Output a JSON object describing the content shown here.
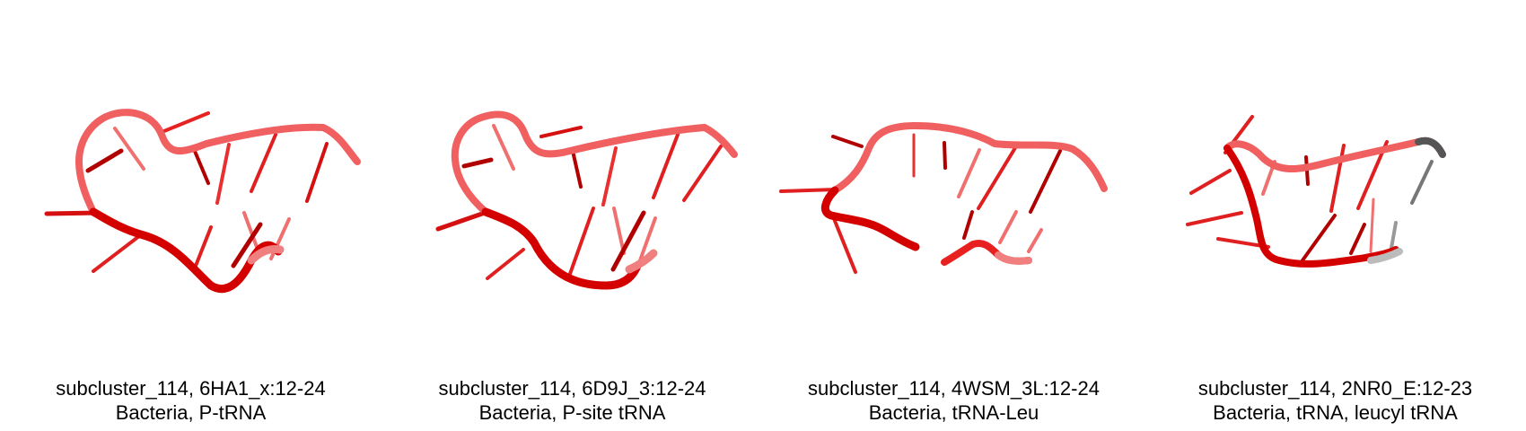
{
  "colors": {
    "strand_dark": "#cc0000",
    "strand_mid": "#e82020",
    "strand_light": "#f06060",
    "base_dark": "#b00000",
    "base_light": "#f07070",
    "grey": "#777777",
    "background": "#ffffff"
  },
  "panels": [
    {
      "structure_name": "rna-structure-6ha1",
      "title": "subcluster_114, 6HA1_x:12-24",
      "subtitle": "Bacteria, P-tRNA"
    },
    {
      "structure_name": "rna-structure-6d9j",
      "title": "subcluster_114, 6D9J_3:12-24",
      "subtitle": "Bacteria, P-site tRNA"
    },
    {
      "structure_name": "rna-structure-4wsm",
      "title": "subcluster_114, 4WSM_3L:12-24",
      "subtitle": "Bacteria, tRNA-Leu"
    },
    {
      "structure_name": "rna-structure-2nr0",
      "title": "subcluster_114, 2NR0_E:12-23",
      "subtitle": "Bacteria, tRNA, leucyl tRNA"
    }
  ]
}
